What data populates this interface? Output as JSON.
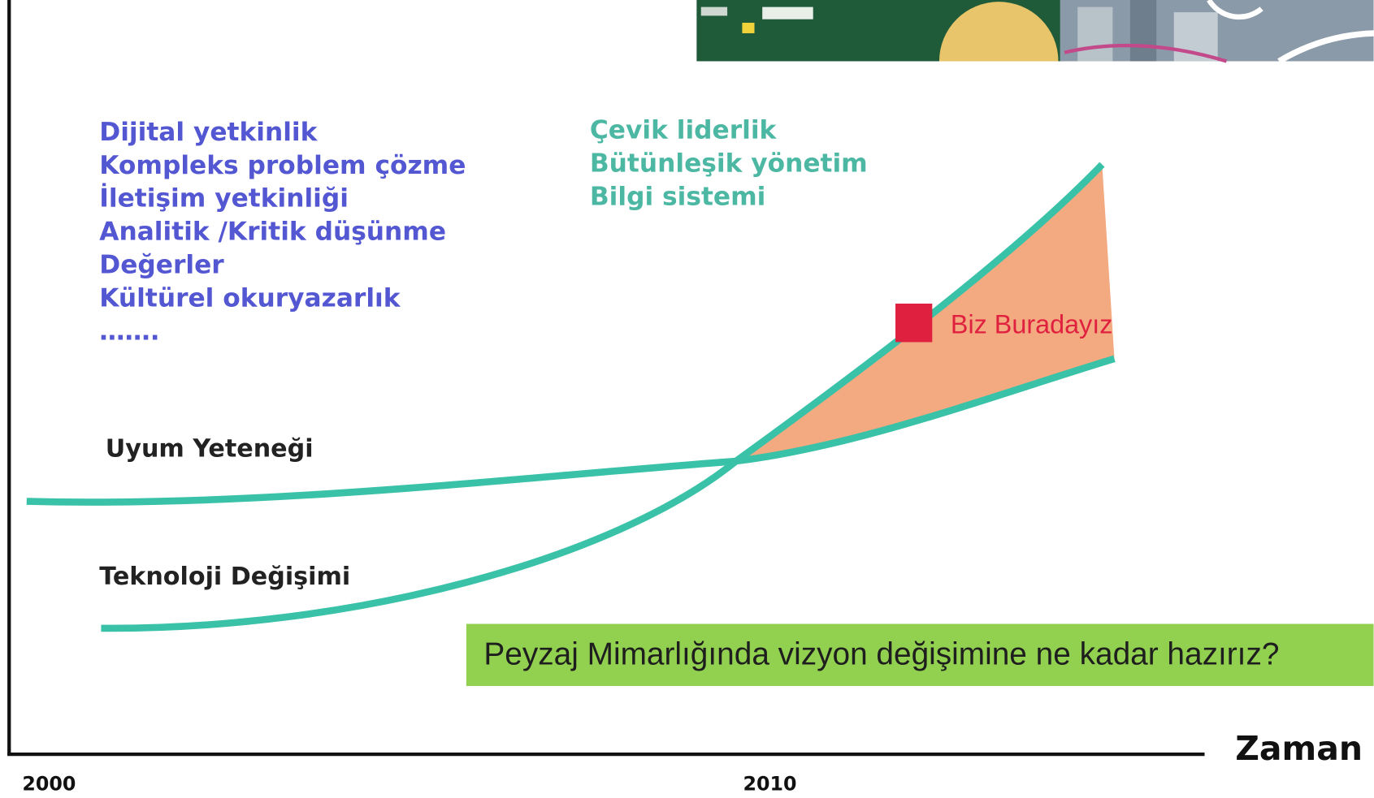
{
  "skills_list": {
    "items": [
      "Dijital yetkinlik",
      "Kompleks problem çözme",
      "İletişim yetkinliği",
      "Analitik /Kritik düşünme",
      "Değerler",
      "Kültürel okuryazarlık",
      "……."
    ]
  },
  "management_list": {
    "items": [
      "Çevik liderlik",
      "Bütünleşik yönetim",
      "Bilgi sistemi"
    ]
  },
  "curves": {
    "adaptation": "Uyum Yeteneği",
    "technology": "Teknoloji Değişimi"
  },
  "marker": {
    "label": "Biz Buradayız"
  },
  "callout": {
    "text": "Peyzaj Mimarlığında vizyon değişimine ne kadar hazırız?"
  },
  "axis": {
    "label": "Zaman",
    "ticks": [
      "2000",
      "2010"
    ]
  }
}
